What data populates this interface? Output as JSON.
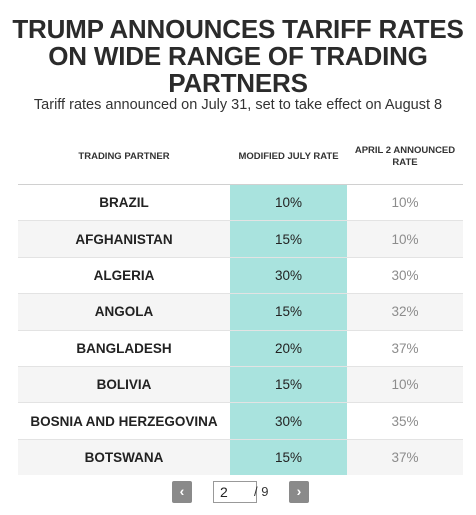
{
  "header": {
    "title": "TRUMP ANNOUNCES TARIFF RATES ON WIDE RANGE OF TRADING PARTNERS",
    "subtitle": "Tariff rates announced on July 31, set to take effect on August 8"
  },
  "table": {
    "columns": [
      "TRADING PARTNER",
      "MODIFIED JULY RATE",
      "APRIL 2 ANNOUNCED RATE"
    ],
    "rows": [
      {
        "partner": "BRAZIL",
        "july": "10%",
        "april": "10%"
      },
      {
        "partner": "AFGHANISTAN",
        "july": "15%",
        "april": "10%"
      },
      {
        "partner": "ALGERIA",
        "july": "30%",
        "april": "30%"
      },
      {
        "partner": "ANGOLA",
        "july": "15%",
        "april": "32%"
      },
      {
        "partner": "BANGLADESH",
        "july": "20%",
        "april": "37%"
      },
      {
        "partner": "BOLIVIA",
        "july": "15%",
        "april": "10%"
      },
      {
        "partner": "BOSNIA AND HERZEGOVINA",
        "july": "30%",
        "april": "35%"
      },
      {
        "partner": "BOTSWANA",
        "july": "15%",
        "april": "37%"
      }
    ]
  },
  "pagination": {
    "prev_label": "‹",
    "next_label": "›",
    "current_page": "2",
    "total_label": "/ 9"
  },
  "colors": {
    "highlight_column": "#a9e3de",
    "button_bg": "#8a8a8a"
  }
}
